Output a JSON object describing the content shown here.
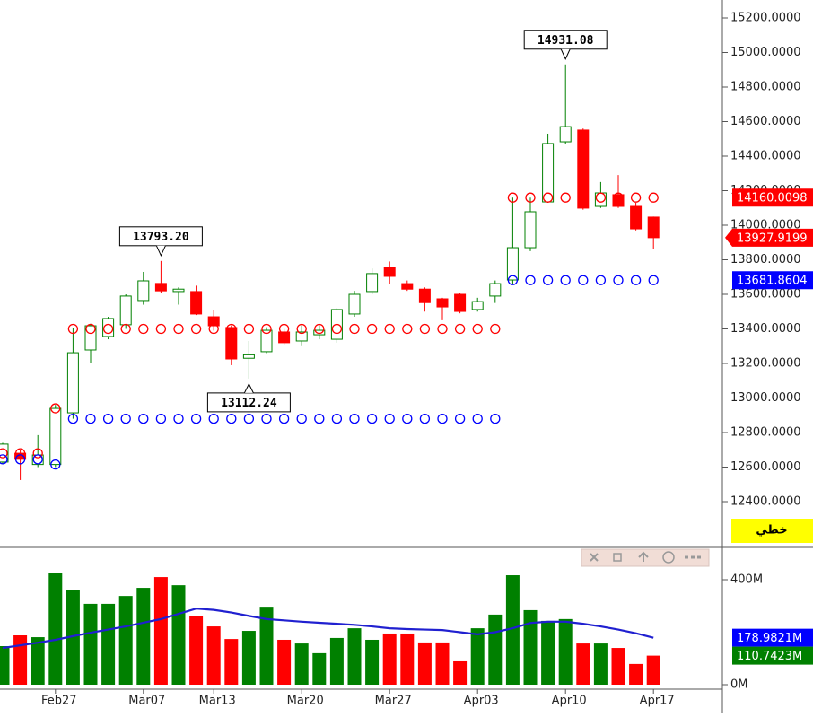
{
  "chart_data": {
    "type": "candlestick",
    "categories": [
      null,
      null,
      null,
      "Feb27",
      null,
      null,
      null,
      null,
      "Mar07",
      null,
      null,
      null,
      "Mar13",
      null,
      null,
      null,
      null,
      "Mar20",
      null,
      null,
      null,
      null,
      "Mar27",
      null,
      null,
      null,
      null,
      "Apr03",
      null,
      null,
      null,
      null,
      "Apr10",
      null,
      null,
      null,
      null,
      "Apr17"
    ],
    "open": [
      12629,
      12680,
      12615,
      12615,
      12914,
      13278,
      13356,
      13424,
      13564,
      13663,
      13616,
      13616,
      13470,
      13408,
      13230,
      13268,
      13382,
      13330,
      13366,
      13340,
      13486,
      13616,
      13756,
      13662,
      13630,
      13574,
      13600,
      13512,
      13590,
      13683,
      13870,
      14135,
      14483,
      14551,
      14109,
      14177,
      14109,
      14047
    ],
    "high": [
      12740,
      12700,
      12785,
      12960,
      13403,
      13430,
      13470,
      13600,
      13730,
      13793.2,
      13640,
      13650,
      13510,
      13420,
      13330,
      13410,
      13400,
      13420,
      13420,
      13520,
      13620,
      13750,
      13790,
      13680,
      13640,
      13580,
      13610,
      13580,
      13680,
      14160,
      14160,
      14530,
      14931.08,
      14560,
      14250,
      14290,
      14130,
      14050
    ],
    "low": [
      12620,
      12525,
      12600,
      12600,
      12880,
      13200,
      13340,
      13400,
      13540,
      13610,
      13540,
      13480,
      13390,
      13190,
      13112.24,
      13260,
      13310,
      13300,
      13340,
      13320,
      13470,
      13600,
      13660,
      13620,
      13500,
      13450,
      13490,
      13500,
      13550,
      13660,
      13850,
      14130,
      14470,
      14090,
      14100,
      14100,
      13970,
      13860
    ],
    "close": [
      12733,
      12645,
      12670,
      12940,
      13262,
      13418,
      13460,
      13590,
      13678,
      13620,
      13630,
      13486,
      13418,
      13226,
      13250,
      13392,
      13320,
      13382,
      13392,
      13512,
      13600,
      13720,
      13704,
      13630,
      13552,
      13527,
      13501,
      13558,
      13662,
      13870,
      14078,
      14473,
      14571,
      14099,
      14187,
      14109,
      13979,
      13927.9199
    ],
    "up_color": "#008000",
    "down_color": "#ff0000",
    "stop_upper": [
      12680,
      12680,
      12680,
      12940,
      13400,
      13400,
      13400,
      13400,
      13400,
      13400,
      13400,
      13400,
      13400,
      13400,
      13400,
      13400,
      13400,
      13400,
      13400,
      13400,
      13400,
      13400,
      13400,
      13400,
      13400,
      13400,
      13400,
      13400,
      13400,
      14160.0098,
      14160.0098,
      14160.0098,
      14160.0098,
      14160.0098,
      14160.0098,
      14160.0098,
      14160.0098,
      14160.0098
    ],
    "stop_lower": [
      12645,
      12645,
      12645,
      12615,
      12880,
      12880,
      12880,
      12880,
      12880,
      12880,
      12880,
      12880,
      12880,
      12880,
      12880,
      12880,
      12880,
      12880,
      12880,
      12880,
      12880,
      12880,
      12880,
      12880,
      12880,
      12880,
      12880,
      12880,
      12880,
      13681.8604,
      13681.8604,
      13681.8604,
      13681.8604,
      13681.8604,
      13681.8604,
      13681.8604,
      13681.8604,
      13681.8604
    ],
    "stop_upper_color": "#ff0000",
    "stop_lower_color": "#0000ff",
    "ylim": [
      12400,
      15200
    ],
    "yticks": [
      {
        "value": 12400,
        "label": "12400.0000"
      },
      {
        "value": 12600,
        "label": "12600.0000"
      },
      {
        "value": 12800,
        "label": "12800.0000"
      },
      {
        "value": 13000,
        "label": "13000.0000"
      },
      {
        "value": 13200,
        "label": "13200.0000"
      },
      {
        "value": 13400,
        "label": "13400.0000"
      },
      {
        "value": 13600,
        "label": "13600.0000"
      },
      {
        "value": 13800,
        "label": "13800.0000"
      },
      {
        "value": 14000,
        "label": "14000.0000"
      },
      {
        "value": 14200,
        "label": "14200.0000"
      },
      {
        "value": 14400,
        "label": "14400.0000"
      },
      {
        "value": 14600,
        "label": "14600.0000"
      },
      {
        "value": 14800,
        "label": "14800.0000"
      },
      {
        "value": 15000,
        "label": "15000.0000"
      },
      {
        "value": 15200,
        "label": "15200.0000"
      }
    ],
    "annotations": [
      {
        "value": 14931.08,
        "label": "14931.08"
      },
      {
        "value": 13793.2,
        "label": "13793.20"
      },
      {
        "value": 13112.24,
        "label": "13112.24"
      }
    ],
    "price_tags": [
      {
        "value": 14160.0098,
        "color": "#ff0000"
      },
      {
        "value": 13927.9199,
        "color": "#ff0000",
        "arrow": true
      },
      {
        "value": 13681.8604,
        "color": "#0000ff"
      }
    ],
    "scale_mode": "خطي",
    "volume": [
      147,
      188,
      181,
      427,
      362,
      308,
      308,
      338,
      369,
      410,
      379,
      263,
      222,
      174,
      205,
      297,
      171,
      157,
      120,
      178,
      215,
      171,
      195,
      195,
      161,
      161,
      89,
      215,
      267,
      417,
      284,
      243,
      250,
      157,
      157,
      140,
      79,
      110.7423
    ],
    "volume_ma": [
      140,
      150,
      160,
      171,
      185,
      198,
      210,
      222,
      236,
      250,
      270,
      290,
      285,
      275,
      262,
      250,
      245,
      240,
      236,
      232,
      228,
      222,
      215,
      212,
      210,
      208,
      200,
      192,
      200,
      215,
      235,
      240,
      240,
      232,
      222,
      210,
      196,
      178.9821
    ],
    "volume_ma_color": "#2020d0",
    "vticks": [
      {
        "value": 0,
        "label": "0M"
      },
      {
        "value": 400,
        "label": "400M"
      }
    ],
    "volume_tags": [
      {
        "value": 178.9821,
        "label": "178.9821M",
        "color": "#0000ff"
      },
      {
        "value": 110.7423,
        "label": "110.7423M",
        "color": "#008000"
      }
    ]
  }
}
